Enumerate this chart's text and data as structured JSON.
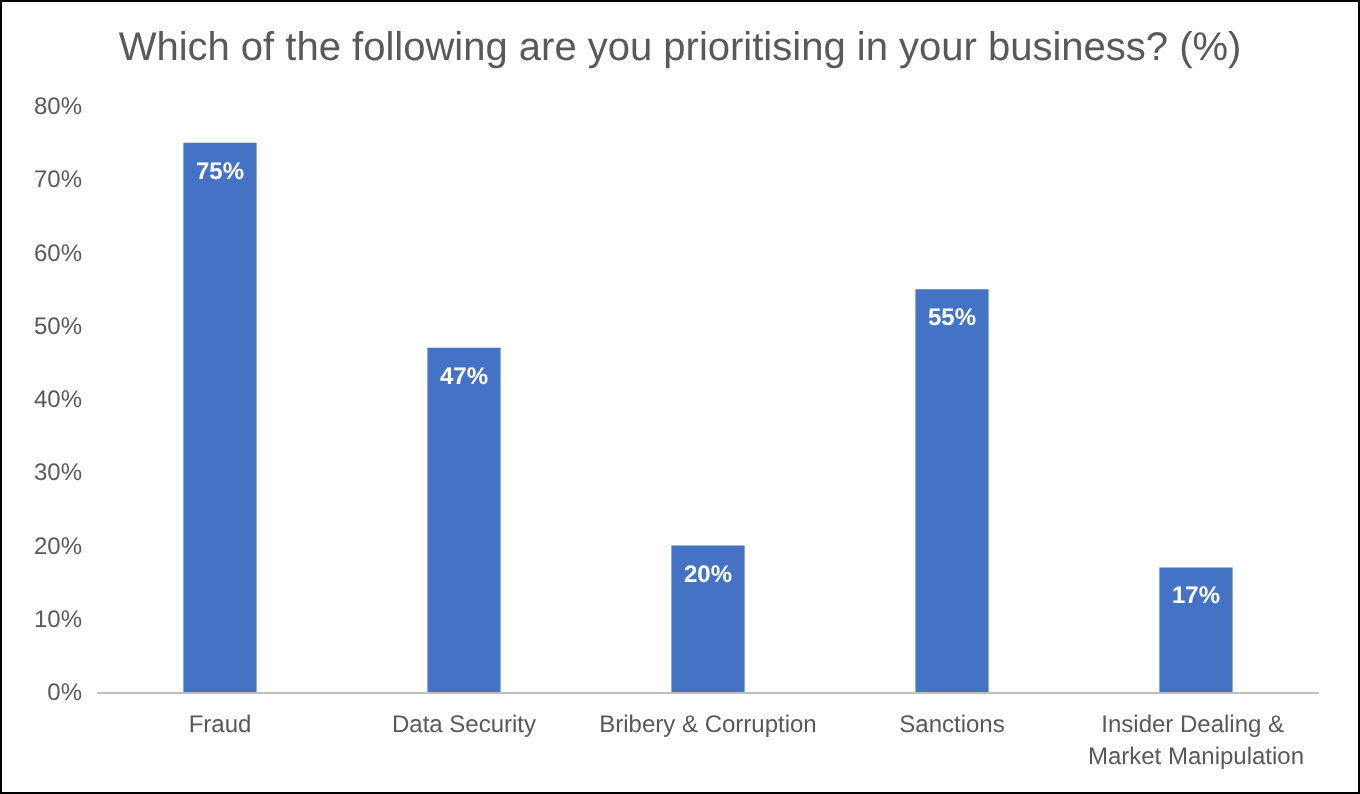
{
  "chart_data": {
    "type": "bar",
    "title": "Which of the following are you prioritising in your business? (%)",
    "categories": [
      "Fraud",
      "Data Security",
      "Bribery & Corruption",
      "Sanctions",
      "Insider Dealing & Market Manipulation"
    ],
    "values": [
      75,
      47,
      20,
      55,
      17
    ],
    "value_labels": [
      "75%",
      "47%",
      "20%",
      "55%",
      "17%"
    ],
    "color": "#4472c4",
    "ylim": [
      0,
      80
    ],
    "yticks": [
      {
        "value": 0,
        "label": "0%"
      },
      {
        "value": 10,
        "label": "10%"
      },
      {
        "value": 20,
        "label": "20%"
      },
      {
        "value": 30,
        "label": "30%"
      },
      {
        "value": 40,
        "label": "40%"
      },
      {
        "value": 50,
        "label": "50%"
      },
      {
        "value": 60,
        "label": "60%"
      },
      {
        "value": 70,
        "label": "70%"
      },
      {
        "value": 80,
        "label": "80%"
      }
    ],
    "grid": false
  }
}
